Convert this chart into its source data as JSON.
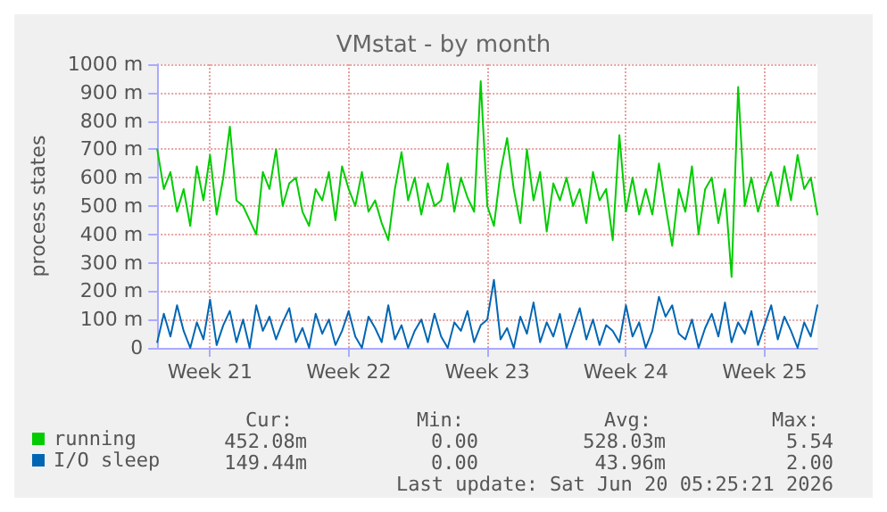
{
  "chart_data": {
    "type": "line",
    "title": "VMstat - by month",
    "ylabel": "process states",
    "categories": [
      null,
      null,
      null,
      null,
      null,
      null,
      null,
      null,
      "Week 21",
      null,
      null,
      null,
      null,
      null,
      null,
      null,
      null,
      null,
      null,
      null,
      null,
      null,
      null,
      null,
      null,
      null,
      null,
      null,
      null,
      "Week 22",
      null,
      null,
      null,
      null,
      null,
      null,
      null,
      null,
      null,
      null,
      null,
      null,
      null,
      null,
      null,
      null,
      null,
      null,
      null,
      null,
      "Week 23",
      null,
      null,
      null,
      null,
      null,
      null,
      null,
      null,
      null,
      null,
      null,
      null,
      null,
      null,
      null,
      null,
      null,
      null,
      null,
      null,
      "Week 24",
      null,
      null,
      null,
      null,
      null,
      null,
      null,
      null,
      null,
      null,
      null,
      null,
      null,
      null,
      null,
      null,
      null,
      null,
      null,
      null,
      "Week 25",
      null,
      null,
      null,
      null,
      null,
      null,
      null,
      null
    ],
    "series": [
      {
        "name": "running",
        "color": "#00cc00",
        "values": [
          700,
          560,
          620,
          480,
          560,
          430,
          640,
          520,
          680,
          470,
          600,
          780,
          520,
          500,
          450,
          400,
          620,
          560,
          700,
          500,
          580,
          600,
          480,
          430,
          560,
          520,
          620,
          450,
          640,
          560,
          500,
          620,
          480,
          520,
          440,
          380,
          560,
          690,
          520,
          600,
          470,
          580,
          500,
          520,
          650,
          480,
          600,
          530,
          480,
          940,
          500,
          430,
          620,
          740,
          560,
          440,
          700,
          520,
          620,
          410,
          580,
          520,
          600,
          500,
          560,
          440,
          620,
          520,
          560,
          380,
          750,
          480,
          600,
          470,
          560,
          470,
          650,
          500,
          360,
          560,
          480,
          640,
          400,
          560,
          600,
          440,
          560,
          250,
          920,
          500,
          600,
          480,
          560,
          620,
          500,
          640,
          520,
          680,
          560,
          600,
          470
        ]
      },
      {
        "name": "I/O sleep",
        "color": "#0066b3",
        "values": [
          20,
          120,
          40,
          150,
          60,
          0,
          90,
          30,
          170,
          10,
          80,
          130,
          20,
          100,
          0,
          150,
          60,
          110,
          30,
          90,
          140,
          20,
          70,
          0,
          120,
          50,
          100,
          10,
          60,
          130,
          40,
          0,
          110,
          70,
          20,
          150,
          30,
          80,
          0,
          60,
          100,
          20,
          120,
          40,
          0,
          90,
          60,
          130,
          20,
          80,
          100,
          240,
          30,
          70,
          0,
          110,
          50,
          160,
          20,
          90,
          40,
          120,
          0,
          70,
          140,
          30,
          100,
          10,
          80,
          60,
          20,
          150,
          40,
          90,
          0,
          60,
          180,
          110,
          150,
          50,
          30,
          100,
          0,
          70,
          120,
          40,
          160,
          20,
          90,
          50,
          130,
          10,
          80,
          150,
          30,
          110,
          60,
          0,
          90,
          40,
          150
        ]
      }
    ],
    "ylim": [
      0,
      1000
    ],
    "yticks": [
      0,
      {
        "value": 100,
        "label": "100 m"
      },
      {
        "value": 200,
        "label": "200 m"
      },
      {
        "value": 300,
        "label": "300 m"
      },
      {
        "value": 400,
        "label": "400 m"
      },
      {
        "value": 500,
        "label": "500 m"
      },
      {
        "value": 600,
        "label": "600 m"
      },
      {
        "value": 700,
        "label": "700 m"
      },
      {
        "value": 800,
        "label": "800 m"
      },
      {
        "value": 900,
        "label": "900 m"
      },
      {
        "value": 1000,
        "label": "1000 m"
      }
    ],
    "grid": true,
    "legend": "bottom left",
    "marker": "none",
    "line_style": "solid",
    "annotations": [
      "Cur:",
      "Min:",
      "Avg:",
      "Max:",
      "452.08m",
      "0.00",
      "528.03m",
      "5.54",
      "149.44m",
      "0.00",
      "43.96m",
      "2.00",
      "Last update: Sat Jun 20 05:25:21 2026"
    ]
  }
}
